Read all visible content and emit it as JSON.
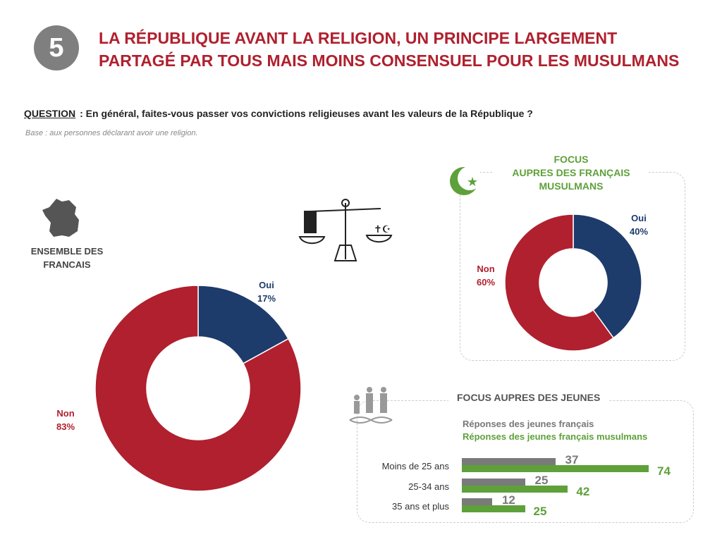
{
  "header": {
    "number": "5",
    "title_line1": "LA RÉPUBLIQUE AVANT LA RELIGION, UN PRINCIPE LARGEMENT",
    "title_line2": "PARTAGÉ PAR TOUS MAIS MOINS CONSENSUEL POUR LES MUSULMANS"
  },
  "question": {
    "label": "QUESTION",
    "text": ":  En général, faites-vous passer vos convictions religieuses avant les valeurs de la République ?",
    "base": "Base : aux personnes déclarant avoir une religion."
  },
  "colors": {
    "oui": "#1d3b6b",
    "non": "#b0202e",
    "grey": "#7a7a7a",
    "green": "#5ea13a"
  },
  "chart_data": [
    {
      "type": "pie",
      "donut": true,
      "title": "ENSEMBLE DES FRANCAIS",
      "slices": [
        {
          "label": "Oui",
          "value": 17,
          "text": "17%"
        },
        {
          "label": "Non",
          "value": 83,
          "text": "83%"
        }
      ]
    },
    {
      "type": "pie",
      "donut": true,
      "title": "FOCUS AUPRES DES FRANÇAIS MUSULMANS",
      "title_lines": [
        "FOCUS",
        "AUPRES DES FRANÇAIS",
        "MUSULMANS"
      ],
      "slices": [
        {
          "label": "Oui",
          "value": 40,
          "text": "40%"
        },
        {
          "label": "Non",
          "value": 60,
          "text": "60%"
        }
      ]
    },
    {
      "type": "bar",
      "orientation": "horizontal",
      "title": "FOCUS AUPRES DES JEUNES",
      "categories": [
        "Moins de 25 ans",
        "25-34 ans",
        "35 ans et plus"
      ],
      "series": [
        {
          "name": "Réponses des jeunes français",
          "values": [
            37,
            25,
            12
          ]
        },
        {
          "name": "Réponses des jeunes français musulmans",
          "values": [
            74,
            42,
            25
          ]
        }
      ]
    }
  ]
}
